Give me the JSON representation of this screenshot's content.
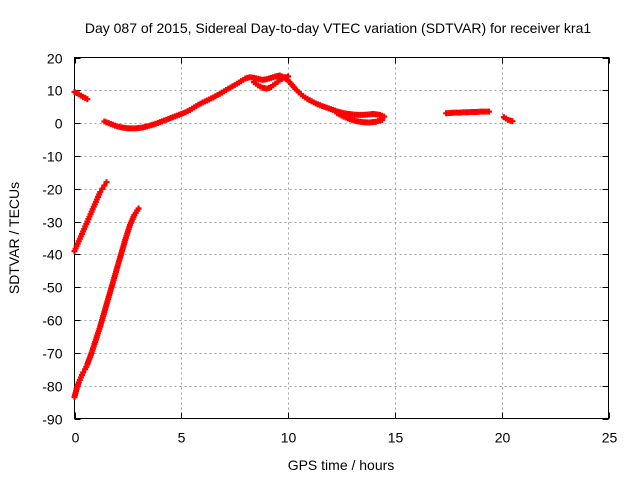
{
  "chart_data": {
    "type": "scatter",
    "title": "Day 087 of 2015, Sidereal Day-to-day VTEC variation (SDTVAR) for receiver kra1",
    "xlabel": "GPS time / hours",
    "ylabel": "SDTVAR / TECUs",
    "xlim": [
      0,
      25
    ],
    "ylim": [
      -90,
      20
    ],
    "xticks": [
      0,
      5,
      10,
      15,
      20,
      25
    ],
    "yticks": [
      -90,
      -80,
      -70,
      -60,
      -50,
      -40,
      -30,
      -20,
      -10,
      0,
      10,
      20
    ],
    "grid": true,
    "legend": "none",
    "marker": "plus",
    "color": "#ff0000",
    "series": [
      {
        "x": [
          0.0,
          0.1,
          0.2,
          0.3,
          0.4,
          0.5,
          0.6
        ],
        "y": [
          9.5,
          9.2,
          8.8,
          8.4,
          8.0,
          7.7,
          7.3
        ]
      },
      {
        "x": [
          0.0,
          0.1,
          0.2,
          0.3,
          0.4,
          0.5,
          0.6,
          0.7,
          0.8,
          0.9,
          1.0,
          1.1,
          1.2,
          1.3,
          1.4,
          1.5
        ],
        "y": [
          -39.0,
          -37.5,
          -36.0,
          -34.5,
          -33.0,
          -31.5,
          -30.0,
          -28.5,
          -27.0,
          -25.5,
          -24.0,
          -22.5,
          -21.0,
          -20.0,
          -19.0,
          -18.0
        ]
      },
      {
        "x": [
          0.0,
          0.1,
          0.2,
          0.3,
          0.4,
          0.5,
          0.6,
          0.8,
          1.0,
          1.2,
          1.4,
          1.6,
          1.8,
          2.0,
          2.2,
          2.4,
          2.6,
          2.8,
          3.0
        ],
        "y": [
          -83.5,
          -81.0,
          -79.0,
          -77.5,
          -76.0,
          -75.0,
          -73.5,
          -70.0,
          -66.0,
          -62.0,
          -57.5,
          -53.0,
          -48.5,
          -44.0,
          -39.5,
          -35.0,
          -31.0,
          -28.0,
          -26.0
        ]
      },
      {
        "x": [
          1.4,
          1.6,
          1.8,
          2.0,
          2.2,
          2.4,
          2.6,
          2.8,
          3.0,
          3.2,
          3.4,
          3.6,
          3.8,
          4.0,
          4.2,
          4.4,
          4.6,
          4.8,
          5.0,
          5.2,
          5.4,
          5.6,
          5.8,
          6.0,
          6.3,
          6.6,
          6.9,
          7.2,
          7.5,
          7.8,
          8.0,
          8.2,
          8.4,
          8.6,
          8.8,
          9.0,
          9.2,
          9.4,
          9.6,
          9.8,
          10.0,
          10.2,
          10.4,
          10.6,
          10.8,
          11.0,
          11.3,
          11.6,
          11.9,
          12.2,
          12.5,
          12.8,
          13.1,
          13.4,
          13.7,
          14.0,
          14.3,
          14.5
        ],
        "y": [
          0.5,
          0.0,
          -0.5,
          -1.0,
          -1.3,
          -1.5,
          -1.6,
          -1.6,
          -1.5,
          -1.3,
          -1.0,
          -0.6,
          -0.2,
          0.3,
          0.8,
          1.3,
          1.8,
          2.3,
          2.8,
          3.3,
          4.0,
          4.8,
          5.6,
          6.3,
          7.2,
          8.2,
          9.3,
          10.5,
          11.6,
          12.8,
          13.6,
          14.0,
          13.8,
          13.5,
          13.2,
          13.4,
          13.8,
          14.2,
          14.5,
          14.0,
          13.0,
          11.5,
          10.0,
          8.8,
          7.8,
          7.0,
          6.0,
          5.2,
          4.5,
          3.8,
          3.2,
          2.8,
          2.6,
          2.5,
          2.6,
          2.8,
          2.5,
          2.0
        ]
      },
      {
        "x": [
          8.4,
          8.6,
          8.8,
          9.0,
          9.2,
          9.4,
          9.6,
          9.8,
          10.0
        ],
        "y": [
          12.5,
          11.5,
          10.8,
          10.5,
          11.0,
          12.0,
          13.0,
          13.8,
          14.2
        ]
      },
      {
        "x": [
          12.3,
          12.6,
          12.9,
          13.2,
          13.5,
          13.8,
          14.1,
          14.4
        ],
        "y": [
          3.0,
          2.0,
          1.2,
          0.6,
          0.3,
          0.2,
          0.4,
          1.0
        ]
      },
      {
        "x": [
          17.4,
          17.6,
          17.8,
          18.0,
          18.2,
          18.4,
          18.6,
          18.8,
          19.0,
          19.2,
          19.4
        ],
        "y": [
          3.0,
          3.1,
          3.2,
          3.2,
          3.3,
          3.3,
          3.4,
          3.4,
          3.5,
          3.5,
          3.5
        ]
      },
      {
        "x": [
          20.1,
          20.2,
          20.3,
          20.4,
          20.5
        ],
        "y": [
          1.8,
          1.4,
          1.0,
          0.8,
          0.6
        ]
      }
    ]
  }
}
